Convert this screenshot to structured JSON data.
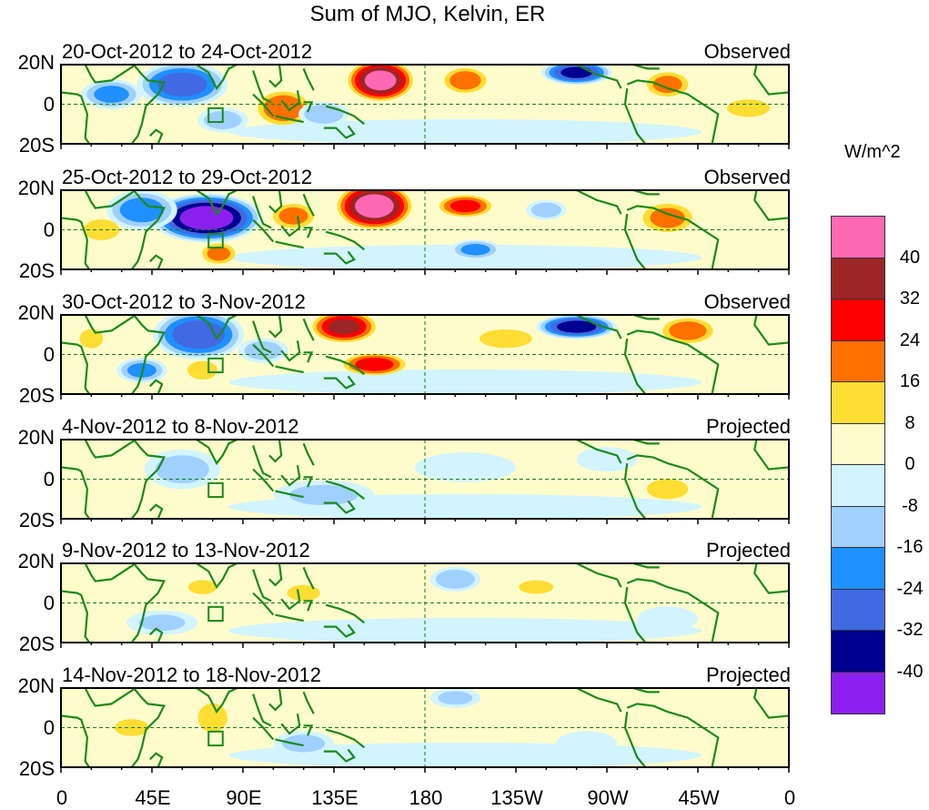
{
  "title": "Sum of MJO, Kelvin, ER",
  "units": "W/m^2",
  "y_ticks": [
    "20N",
    "0",
    "20S"
  ],
  "x_ticks": [
    "0",
    "45E",
    "90E",
    "135E",
    "180",
    "135W",
    "90W",
    "45W",
    "0"
  ],
  "colorbar": {
    "labels": [
      "40",
      "32",
      "24",
      "16",
      "8",
      "0",
      "-8",
      "-16",
      "-24",
      "-32",
      "-40"
    ],
    "colors": [
      "#ff69b4",
      "#9c2525",
      "#ff0000",
      "#ff7000",
      "#ffdd33",
      "#fffccc",
      "#d2f4ff",
      "#a0d0ff",
      "#1e90ff",
      "#4169e1",
      "#000090",
      "#8a20ee"
    ]
  },
  "chart_data": {
    "type": "heatmap",
    "title": "Sum of MJO, Kelvin, ER",
    "units": "W/m^2",
    "lon_range": [
      0,
      360
    ],
    "lat_range": [
      -20,
      20
    ],
    "levels": [
      -40,
      -32,
      -24,
      -16,
      -8,
      0,
      8,
      16,
      24,
      32,
      40
    ],
    "panels": [
      {
        "dates": "20-Oct-2012 to 24-Oct-2012",
        "kind": "Observed",
        "anomalies": [
          [
            60,
            10,
            -28,
            18,
            9
          ],
          [
            25,
            5,
            -18,
            12,
            6
          ],
          [
            110,
            -2,
            22,
            12,
            8
          ],
          [
            158,
            12,
            44,
            14,
            9
          ],
          [
            200,
            12,
            20,
            10,
            6
          ],
          [
            255,
            16,
            -34,
            14,
            5
          ],
          [
            300,
            10,
            18,
            10,
            6
          ],
          [
            130,
            -5,
            -14,
            10,
            5
          ],
          [
            340,
            -2,
            10,
            12,
            5
          ],
          [
            80,
            -8,
            -12,
            10,
            5
          ]
        ]
      },
      {
        "dates": "25-Oct-2012 to 29-Oct-2012",
        "kind": "Observed",
        "anomalies": [
          [
            72,
            6,
            -46,
            22,
            10
          ],
          [
            40,
            10,
            -20,
            14,
            8
          ],
          [
            155,
            12,
            46,
            16,
            10
          ],
          [
            115,
            7,
            18,
            10,
            6
          ],
          [
            78,
            -12,
            18,
            8,
            5
          ],
          [
            205,
            -10,
            -18,
            10,
            4
          ],
          [
            200,
            12,
            26,
            12,
            5
          ],
          [
            300,
            6,
            18,
            12,
            7
          ],
          [
            240,
            10,
            -12,
            8,
            4
          ],
          [
            20,
            0,
            10,
            10,
            6
          ]
        ]
      },
      {
        "dates": "30-Oct-2012 to 3-Nov-2012",
        "kind": "Observed",
        "anomalies": [
          [
            68,
            10,
            -30,
            18,
            10
          ],
          [
            140,
            14,
            34,
            14,
            7
          ],
          [
            155,
            -5,
            28,
            14,
            5
          ],
          [
            255,
            14,
            -36,
            16,
            5
          ],
          [
            310,
            12,
            20,
            12,
            6
          ],
          [
            70,
            -8,
            12,
            8,
            5
          ],
          [
            40,
            -8,
            -18,
            10,
            5
          ],
          [
            15,
            8,
            14,
            6,
            5
          ],
          [
            220,
            8,
            12,
            14,
            5
          ],
          [
            100,
            2,
            -12,
            10,
            5
          ]
        ]
      },
      {
        "dates": "4-Nov-2012 to 8-Nov-2012",
        "kind": "Projected",
        "anomalies": [
          [
            60,
            5,
            -10,
            15,
            8
          ],
          [
            130,
            -8,
            -9,
            20,
            6
          ],
          [
            200,
            6,
            -7,
            20,
            6
          ],
          [
            300,
            -5,
            9,
            12,
            6
          ],
          [
            270,
            10,
            -7,
            12,
            5
          ],
          [
            20,
            -5,
            6,
            10,
            6
          ]
        ]
      },
      {
        "dates": "9-Nov-2012 to 13-Nov-2012",
        "kind": "Projected",
        "anomalies": [
          [
            70,
            8,
            10,
            8,
            4
          ],
          [
            120,
            5,
            8,
            10,
            5
          ],
          [
            195,
            12,
            -14,
            10,
            5
          ],
          [
            235,
            8,
            9,
            10,
            4
          ],
          [
            50,
            -10,
            -8,
            14,
            5
          ],
          [
            300,
            -8,
            -7,
            12,
            5
          ]
        ]
      },
      {
        "dates": "14-Nov-2012 to 18-Nov-2012",
        "kind": "Projected",
        "anomalies": [
          [
            75,
            5,
            11,
            8,
            8
          ],
          [
            120,
            -8,
            -10,
            12,
            5
          ],
          [
            195,
            15,
            -9,
            10,
            4
          ],
          [
            35,
            0,
            9,
            10,
            5
          ],
          [
            260,
            -8,
            -6,
            12,
            5
          ],
          [
            140,
            8,
            7,
            10,
            5
          ]
        ]
      }
    ]
  }
}
